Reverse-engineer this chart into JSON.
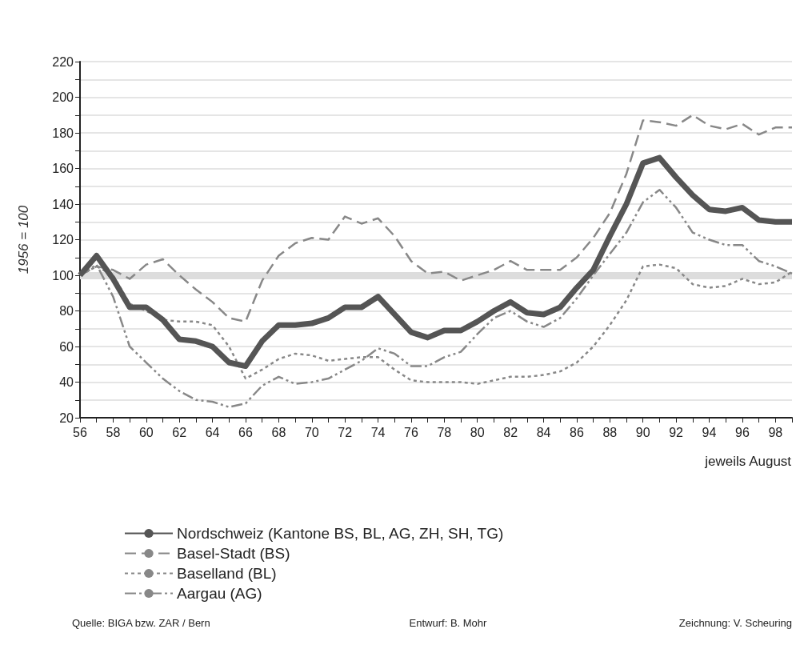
{
  "chart_data": {
    "type": "line",
    "ylabel": "1956 = 100",
    "xlabel": "jeweils August",
    "x": [
      56,
      57,
      58,
      59,
      60,
      61,
      62,
      63,
      64,
      65,
      66,
      67,
      68,
      69,
      70,
      71,
      72,
      73,
      74,
      75,
      76,
      77,
      78,
      79,
      80,
      81,
      82,
      83,
      84,
      85,
      86,
      87,
      88,
      89,
      90,
      91,
      92,
      93,
      94,
      95,
      96,
      97,
      98,
      99
    ],
    "series": [
      {
        "name": "Nordschweiz (Kantone BS, BL, AG, ZH, SH, TG)",
        "color": "#555555",
        "line_style": "solid",
        "values": [
          100,
          111,
          98,
          82,
          82,
          75,
          64,
          63,
          60,
          51,
          49,
          63,
          72,
          72,
          73,
          76,
          82,
          82,
          88,
          78,
          68,
          65,
          69,
          69,
          74,
          80,
          85,
          79,
          78,
          82,
          93,
          103,
          122,
          140,
          163,
          166,
          155,
          145,
          137,
          136,
          138,
          131,
          130,
          130
        ]
      },
      {
        "name": "Basel-Stadt (BS)",
        "color": "#888888",
        "line_style": "dashed",
        "values": [
          100,
          105,
          103,
          98,
          106,
          109,
          100,
          92,
          85,
          76,
          74,
          97,
          111,
          118,
          121,
          120,
          133,
          129,
          132,
          122,
          108,
          101,
          102,
          97,
          100,
          103,
          108,
          103,
          103,
          103,
          110,
          121,
          135,
          157,
          187,
          186,
          184,
          190,
          184,
          182,
          185,
          179,
          183,
          183
        ]
      },
      {
        "name": "Baselland (BL)",
        "color": "#888888",
        "line_style": "dotted",
        "values": [
          100,
          105,
          100,
          84,
          80,
          75,
          74,
          74,
          72,
          60,
          42,
          47,
          53,
          56,
          55,
          52,
          53,
          54,
          54,
          47,
          41,
          40,
          40,
          40,
          39,
          41,
          43,
          43,
          44,
          46,
          51,
          60,
          72,
          86,
          105,
          106,
          104,
          95,
          93,
          94,
          98,
          95,
          96,
          102
        ]
      },
      {
        "name": "Aargau (AG)",
        "color": "#888888",
        "line_style": "dashdot",
        "values": [
          100,
          106,
          88,
          60,
          51,
          42,
          35,
          30,
          29,
          26,
          28,
          38,
          43,
          39,
          40,
          42,
          47,
          52,
          59,
          56,
          49,
          49,
          54,
          57,
          67,
          76,
          80,
          74,
          71,
          76,
          87,
          100,
          112,
          124,
          141,
          148,
          138,
          124,
          120,
          117,
          117,
          108,
          105,
          101
        ]
      }
    ],
    "xlim": [
      56,
      99
    ],
    "xticks": [
      56,
      {
        "value": 57,
        "label": null
      },
      58,
      {
        "value": 59,
        "label": null
      },
      60,
      {
        "value": 61,
        "label": null
      },
      62,
      {
        "value": 63,
        "label": null
      },
      64,
      {
        "value": 65,
        "label": null
      },
      66,
      {
        "value": 67,
        "label": null
      },
      68,
      {
        "value": 69,
        "label": null
      },
      70,
      {
        "value": 71,
        "label": null
      },
      72,
      {
        "value": 73,
        "label": null
      },
      74,
      {
        "value": 75,
        "label": null
      },
      76,
      {
        "value": 77,
        "label": null
      },
      78,
      {
        "value": 79,
        "label": null
      },
      80,
      {
        "value": 81,
        "label": null
      },
      82,
      {
        "value": 83,
        "label": null
      },
      84,
      {
        "value": 85,
        "label": null
      },
      86,
      {
        "value": 87,
        "label": null
      },
      88,
      {
        "value": 89,
        "label": null
      },
      90,
      {
        "value": 91,
        "label": null
      },
      92,
      {
        "value": 93,
        "label": null
      },
      94,
      {
        "value": 95,
        "label": null
      },
      96,
      {
        "value": 97,
        "label": null
      },
      98,
      {
        "value": 99,
        "label": null
      }
    ],
    "ylim": [
      20,
      220
    ],
    "yticks": [
      20,
      {
        "value": 30,
        "label": null
      },
      40,
      {
        "value": 50,
        "label": null
      },
      60,
      {
        "value": 70,
        "label": null
      },
      80,
      {
        "value": 90,
        "label": null
      },
      100,
      {
        "value": 110,
        "label": null
      },
      120,
      {
        "value": 130,
        "label": null
      },
      140,
      {
        "value": 150,
        "label": null
      },
      160,
      {
        "value": 170,
        "label": null
      },
      180,
      {
        "value": 190,
        "label": null
      },
      200,
      {
        "value": 210,
        "label": null
      },
      220
    ],
    "ref_lines": [
      {
        "axis": "y",
        "value": 100,
        "color": "#dddddd"
      }
    ],
    "grid": "y",
    "legend": "bottom",
    "marker": "none",
    "annotations": [
      "Quelle: BIGA bzw. ZAR / Bern",
      "Entwurf: B. Mohr",
      "Zeichnung: V. Scheuring"
    ]
  }
}
